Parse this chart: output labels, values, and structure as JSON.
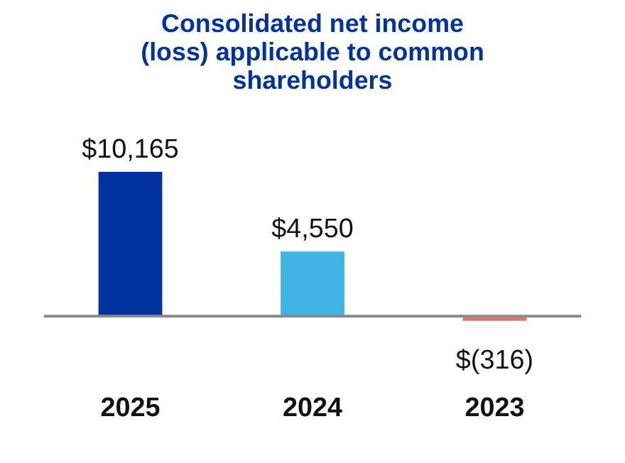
{
  "chart_data": {
    "type": "bar",
    "title": "Consolidated net income\n(loss) applicable to common\nshareholders",
    "categories": [
      "2025",
      "2024",
      "2023"
    ],
    "values": [
      10165,
      4550,
      -316
    ],
    "colors": [
      "#0033a0",
      "#41b6e6",
      "#e8735a"
    ],
    "value_labels": [
      "$10,165",
      "$4,550",
      "$(316)"
    ],
    "grid": false,
    "legend": false
  }
}
